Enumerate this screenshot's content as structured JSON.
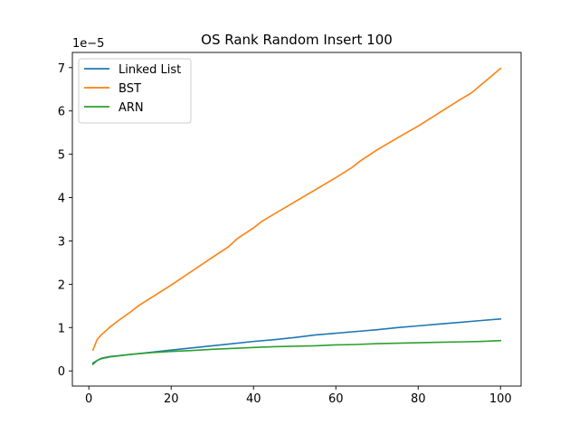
{
  "chart_data": {
    "type": "line",
    "title": "OS Rank Random Insert 100",
    "xlabel": "",
    "ylabel": "",
    "y_offset_label": "1e−5",
    "xlim": [
      -4,
      105
    ],
    "ylim": [
      -0.35,
      7.35
    ],
    "x_ticks": [
      0,
      20,
      40,
      60,
      80,
      100
    ],
    "y_ticks": [
      0,
      1,
      2,
      3,
      4,
      5,
      6,
      7
    ],
    "grid": false,
    "legend_position": "top-left",
    "series": [
      {
        "name": "Linked List",
        "color": "#1f77b4",
        "x": [
          1,
          2,
          3,
          5,
          10,
          15,
          20,
          25,
          30,
          35,
          40,
          45,
          50,
          55,
          60,
          65,
          70,
          75,
          80,
          85,
          90,
          95,
          100
        ],
        "y": [
          0.18,
          0.24,
          0.29,
          0.33,
          0.38,
          0.43,
          0.48,
          0.53,
          0.58,
          0.63,
          0.68,
          0.72,
          0.77,
          0.83,
          0.87,
          0.91,
          0.95,
          1.0,
          1.04,
          1.08,
          1.12,
          1.16,
          1.2
        ]
      },
      {
        "name": "BST",
        "color": "#ff7f0e",
        "x": [
          1,
          2,
          3,
          5,
          7,
          10,
          12,
          15,
          20,
          25,
          30,
          34,
          36,
          40,
          42,
          45,
          50,
          55,
          60,
          64,
          66,
          70,
          75,
          80,
          85,
          90,
          93,
          95,
          100
        ],
        "y": [
          0.48,
          0.72,
          0.83,
          1.0,
          1.15,
          1.35,
          1.5,
          1.68,
          1.98,
          2.3,
          2.62,
          2.87,
          3.05,
          3.3,
          3.45,
          3.62,
          3.9,
          4.18,
          4.46,
          4.7,
          4.85,
          5.1,
          5.38,
          5.65,
          5.95,
          6.25,
          6.42,
          6.58,
          6.98
        ]
      },
      {
        "name": "ARN",
        "color": "#2ca02c",
        "x": [
          1,
          2,
          3,
          5,
          10,
          15,
          20,
          25,
          30,
          35,
          40,
          45,
          50,
          55,
          60,
          65,
          70,
          75,
          80,
          85,
          90,
          95,
          100
        ],
        "y": [
          0.15,
          0.24,
          0.28,
          0.32,
          0.38,
          0.42,
          0.45,
          0.47,
          0.5,
          0.52,
          0.54,
          0.56,
          0.57,
          0.58,
          0.6,
          0.61,
          0.63,
          0.64,
          0.65,
          0.66,
          0.67,
          0.68,
          0.7
        ]
      }
    ]
  }
}
